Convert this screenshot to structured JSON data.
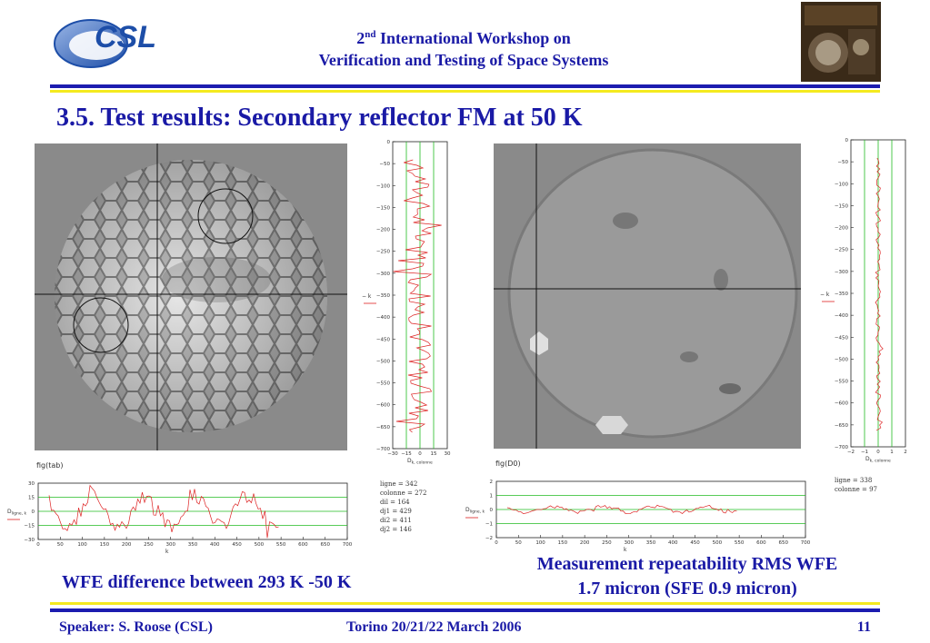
{
  "header": {
    "logo_text": "CSL",
    "line1_num": "2",
    "line1_sup": "nd",
    "line1_rest": " International Workshop on",
    "line2": "Verification and Testing of Space Systems",
    "thumb_icon": "workshop-poster-image"
  },
  "title": "3.5. Test results: Secondary reflector FM at 50 K",
  "left_panel": {
    "map_icon": "honeycomb-wfe-map",
    "fig_label": "fig(tab)",
    "vplot": {
      "yticks": [
        "0",
        "−50",
        "−100",
        "−150",
        "−200",
        "−250",
        "−300",
        "−350",
        "−400",
        "−450",
        "−500",
        "−550",
        "−600",
        "−650",
        "−700"
      ],
      "xticks": [
        "−30",
        "−15",
        "0",
        "15",
        "30"
      ],
      "ylabel": "− k",
      "xlabel_main": "D",
      "xlabel_sub": "k, colonne"
    },
    "hplot": {
      "yticks": [
        "30",
        "15",
        "0",
        "−15",
        "−30"
      ],
      "xticks": [
        "0",
        "50",
        "100",
        "150",
        "200",
        "250",
        "300",
        "350",
        "400",
        "450",
        "500",
        "550",
        "600",
        "650",
        "700"
      ],
      "ylabel_main": "D",
      "ylabel_sub": "ligne, k",
      "xlabel": "k"
    },
    "stats": [
      "ligne = 342",
      "colonne = 272",
      "dil = 164",
      "dj1 = 429",
      "di2 = 411",
      "dj2 = 146"
    ]
  },
  "right_panel": {
    "map_icon": "repeatability-map",
    "fig_label": "fig(D0)",
    "vplot": {
      "yticks": [
        "0",
        "−50",
        "−100",
        "−150",
        "−200",
        "−250",
        "−300",
        "−350",
        "−400",
        "−450",
        "−500",
        "−550",
        "−600",
        "−650",
        "−700"
      ],
      "xticks": [
        "−2",
        "−1",
        "0",
        "1",
        "2"
      ],
      "ylabel": "− k",
      "xlabel_main": "D",
      "xlabel_sub": "k, colonne"
    },
    "hplot": {
      "yticks": [
        "2",
        "1",
        "0",
        "−1",
        "−2"
      ],
      "xticks": [
        "0",
        "50",
        "100",
        "150",
        "200",
        "250",
        "300",
        "350",
        "400",
        "450",
        "500",
        "550",
        "600",
        "650",
        "700"
      ],
      "ylabel_main": "D",
      "ylabel_sub": "ligne, k",
      "xlabel": "k"
    },
    "stats": [
      "ligne = 338",
      "colonne = 97"
    ]
  },
  "captions": {
    "left": "WFE difference between 293 K -50 K",
    "right_line1": "Measurement repeatability RMS WFE",
    "right_line2": "1.7 micron (SFE 0.9 micron)"
  },
  "footer": {
    "speaker": "Speaker: S. Roose (CSL)",
    "venue": "Torino 20/21/22 March 2006",
    "page": "11"
  },
  "colors": {
    "accent_blue": "#1a1aa6",
    "accent_yellow": "#f4ea1f",
    "plot_green": "#22bb22",
    "plot_red": "#dd2222"
  }
}
